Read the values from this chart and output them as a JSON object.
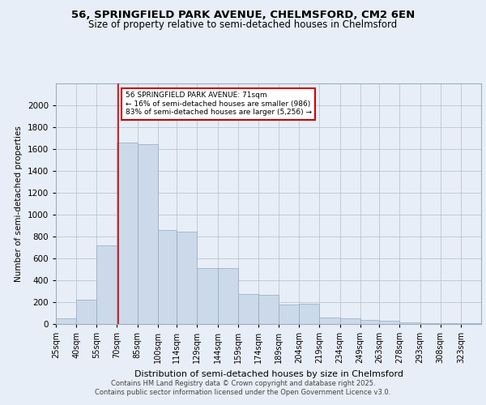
{
  "title1": "56, SPRINGFIELD PARK AVENUE, CHELMSFORD, CM2 6EN",
  "title2": "Size of property relative to semi-detached houses in Chelmsford",
  "xlabel": "Distribution of semi-detached houses by size in Chelmsford",
  "ylabel": "Number of semi-detached properties",
  "footnote1": "Contains HM Land Registry data © Crown copyright and database right 2025.",
  "footnote2": "Contains public sector information licensed under the Open Government Licence v3.0.",
  "annotation_line1": "56 SPRINGFIELD PARK AVENUE: 71sqm",
  "annotation_line2": "← 16% of semi-detached houses are smaller (986)",
  "annotation_line3": "83% of semi-detached houses are larger (5,256) →",
  "property_size": 71,
  "bar_color": "#ccd9ea",
  "bar_edge_color": "#8faabf",
  "vline_color": "#cc0000",
  "annotation_box_color": "#cc0000",
  "background_color": "#e8eef7",
  "categories": [
    "25sqm",
    "40sqm",
    "55sqm",
    "70sqm",
    "85sqm",
    "100sqm",
    "114sqm",
    "129sqm",
    "144sqm",
    "159sqm",
    "174sqm",
    "189sqm",
    "204sqm",
    "219sqm",
    "234sqm",
    "249sqm",
    "263sqm",
    "278sqm",
    "293sqm",
    "308sqm",
    "323sqm"
  ],
  "bin_edges": [
    25,
    40,
    55,
    70,
    85,
    100,
    114,
    129,
    144,
    159,
    174,
    189,
    204,
    219,
    234,
    249,
    263,
    278,
    293,
    308,
    323,
    338
  ],
  "values": [
    50,
    220,
    720,
    1660,
    1640,
    860,
    840,
    510,
    510,
    275,
    265,
    180,
    185,
    58,
    55,
    40,
    28,
    18,
    10,
    8,
    5
  ],
  "ylim": [
    0,
    2200
  ],
  "yticks": [
    0,
    200,
    400,
    600,
    800,
    1000,
    1200,
    1400,
    1600,
    1800,
    2000
  ]
}
